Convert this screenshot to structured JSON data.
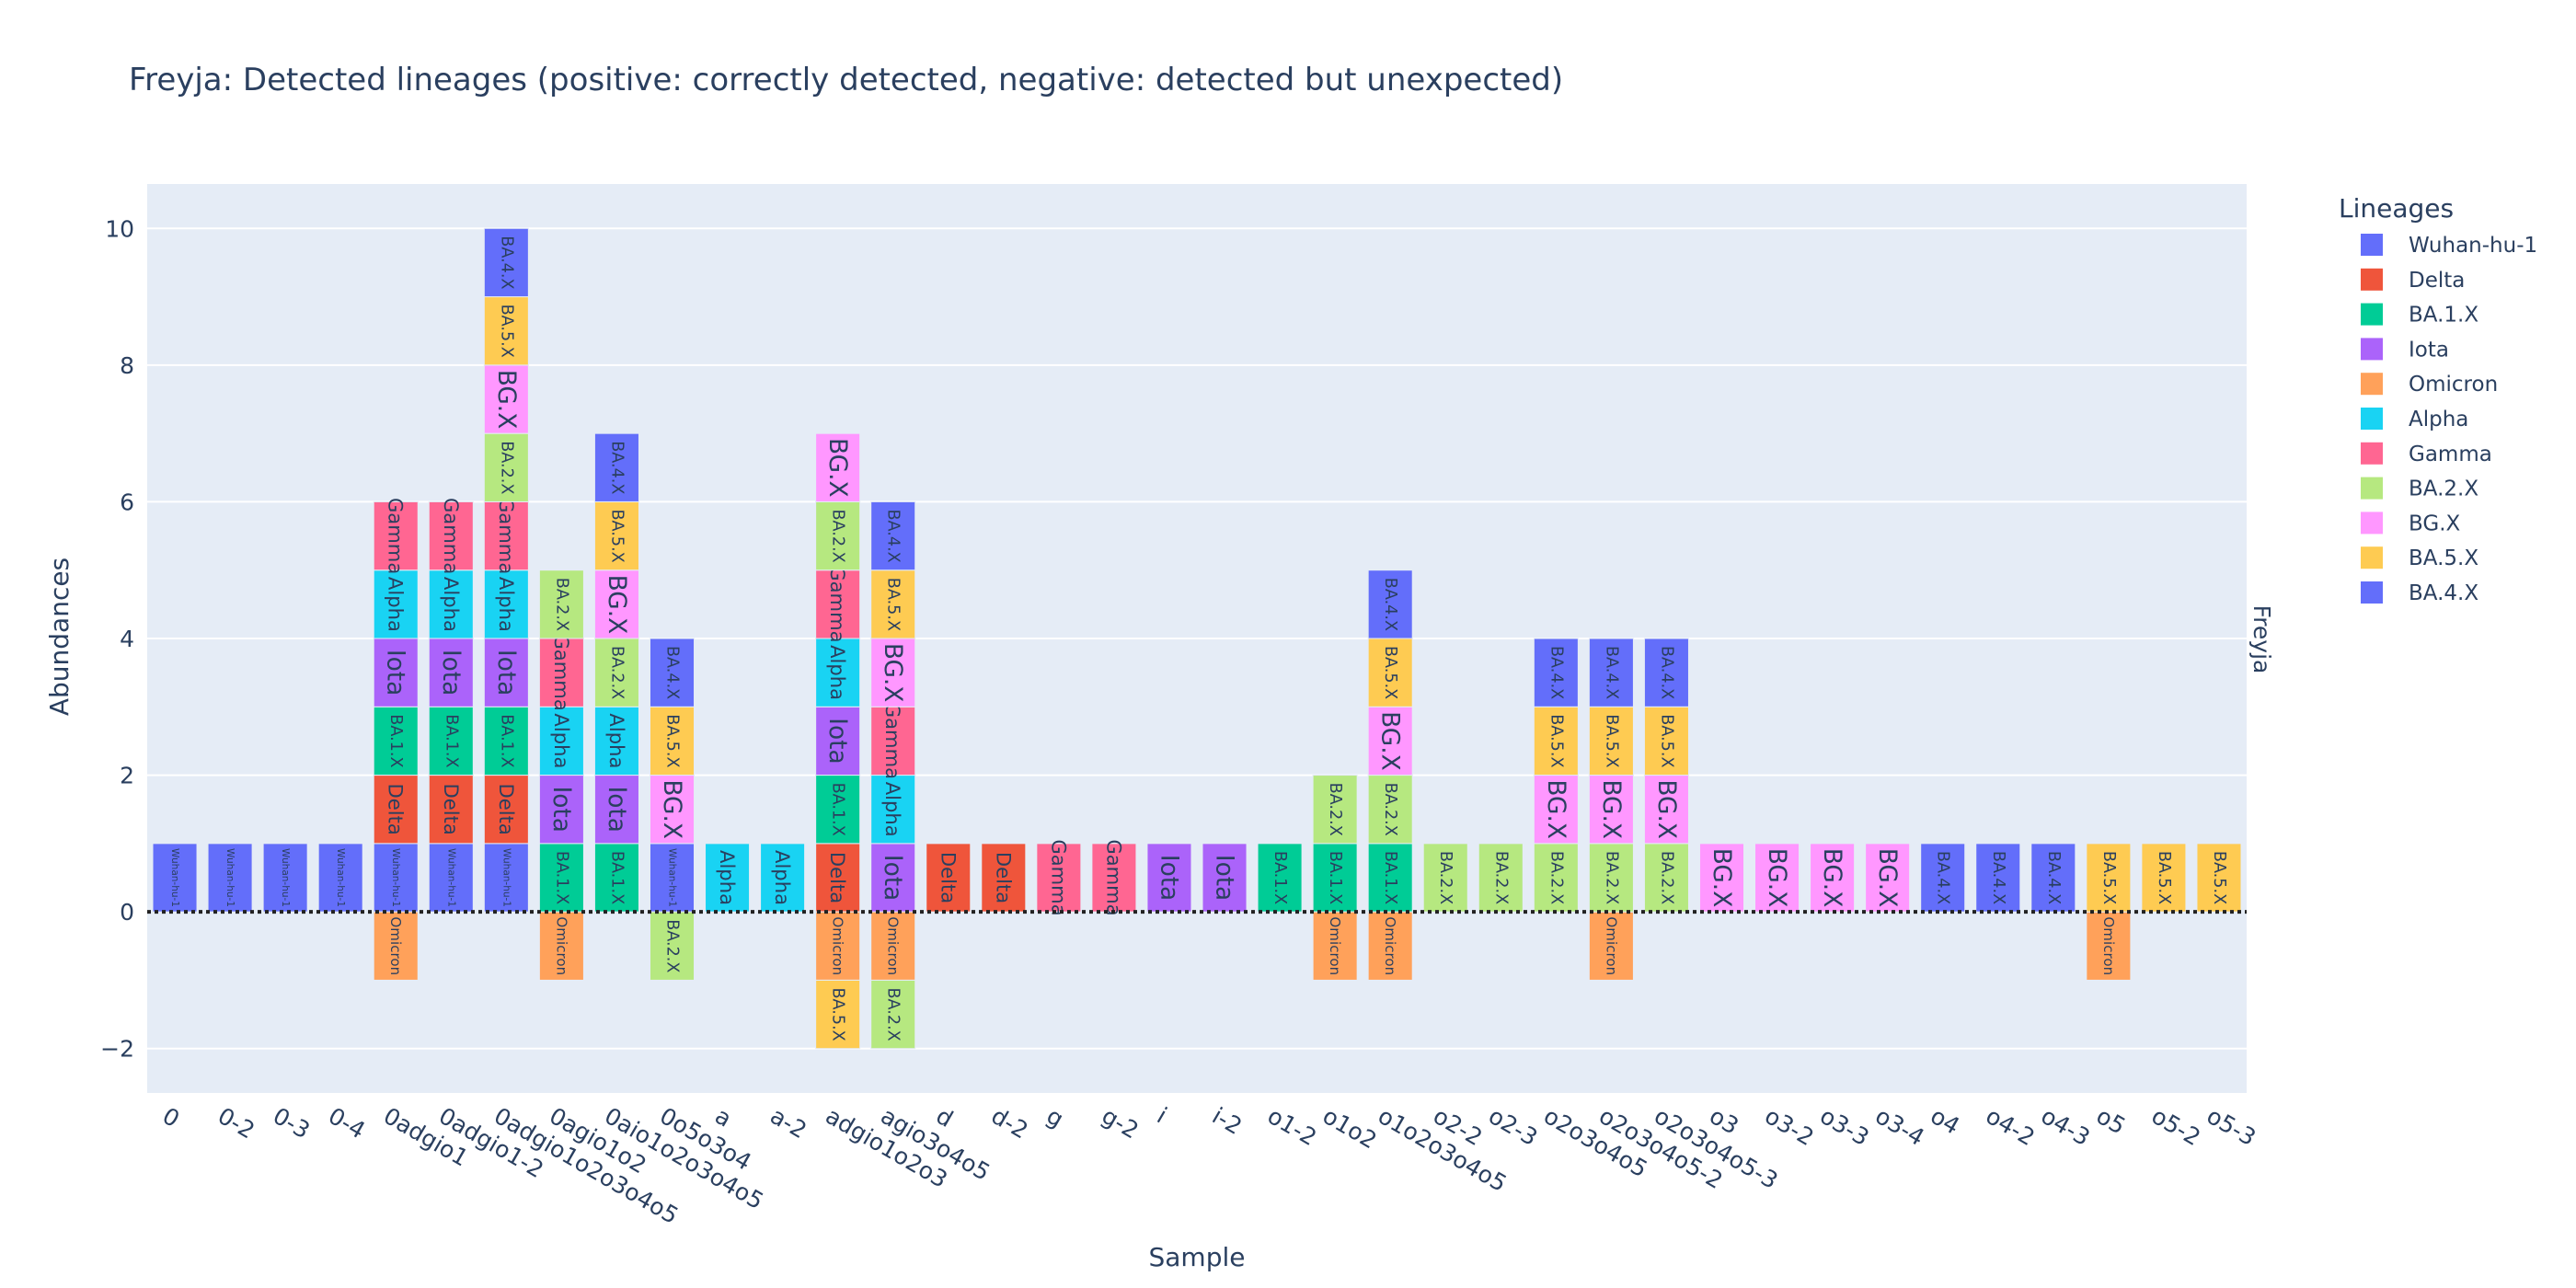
{
  "chart_data": {
    "type": "bar",
    "barmode": "relative",
    "title": "Freyja: Detected lineages (positive: correctly detected, negative: detected but unexpected)",
    "xlabel": "Sample",
    "ylabel": "Abundances",
    "facet_label": "Freyja",
    "legend_title": "Lineages",
    "legend_position": "right",
    "ylim": [
      -2.65,
      10.65
    ],
    "yticks": [
      -2,
      0,
      2,
      4,
      6,
      8,
      10
    ],
    "ytick_labels": [
      "−2",
      "0",
      "2",
      "4",
      "6",
      "8",
      "10"
    ],
    "grid": true,
    "categories": [
      "0",
      "0-2",
      "0-3",
      "0-4",
      "0adgio1",
      "0adgio1-2",
      "0adgio1o2o3o4o5",
      "0agio1o2",
      "0aio1o2o3o4o5",
      "0o5o3o4",
      "a",
      "a-2",
      "adgio1o2o3",
      "agio3o4o5",
      "d",
      "d-2",
      "g",
      "g-2",
      "i",
      "i-2",
      "o1-2",
      "o1o2",
      "o1o2o3o4o5",
      "o2-2",
      "o2-3",
      "o2o3o4o5",
      "o2o3o4o5-2",
      "o2o3o4o5-3",
      "o3",
      "o3-2",
      "o3-3",
      "o3-4",
      "o4",
      "o4-2",
      "o4-3",
      "o5",
      "o5-2",
      "o5-3"
    ],
    "series": [
      {
        "name": "Wuhan-hu-1",
        "color": "#636efa",
        "values": [
          1,
          1,
          1,
          1,
          1,
          1,
          1,
          0,
          0,
          1,
          0,
          0,
          0,
          0,
          0,
          0,
          0,
          0,
          0,
          0,
          0,
          0,
          0,
          0,
          0,
          0,
          0,
          0,
          0,
          0,
          0,
          0,
          0,
          0,
          0,
          0,
          0,
          0
        ]
      },
      {
        "name": "Delta",
        "color": "#ef553b",
        "values": [
          0,
          0,
          0,
          0,
          1,
          1,
          1,
          0,
          0,
          0,
          0,
          0,
          1,
          0,
          1,
          1,
          0,
          0,
          0,
          0,
          0,
          0,
          0,
          0,
          0,
          0,
          0,
          0,
          0,
          0,
          0,
          0,
          0,
          0,
          0,
          0,
          0,
          0
        ]
      },
      {
        "name": "BA.1.X",
        "color": "#00cc96",
        "values": [
          0,
          0,
          0,
          0,
          1,
          1,
          1,
          1,
          1,
          0,
          0,
          0,
          1,
          0,
          0,
          0,
          0,
          0,
          0,
          0,
          1,
          1,
          1,
          0,
          0,
          0,
          0,
          0,
          0,
          0,
          0,
          0,
          0,
          0,
          0,
          0,
          0,
          0
        ]
      },
      {
        "name": "Iota",
        "color": "#ab63fa",
        "values": [
          0,
          0,
          0,
          0,
          1,
          1,
          1,
          1,
          1,
          0,
          0,
          0,
          1,
          1,
          0,
          0,
          0,
          0,
          1,
          1,
          0,
          0,
          0,
          0,
          0,
          0,
          0,
          0,
          0,
          0,
          0,
          0,
          0,
          0,
          0,
          0,
          0,
          0
        ]
      },
      {
        "name": "Omicron",
        "color": "#ffa15a",
        "values": [
          0,
          0,
          0,
          0,
          -1,
          0,
          0,
          -1,
          0,
          0,
          0,
          0,
          -1,
          -1,
          0,
          0,
          0,
          0,
          0,
          0,
          0,
          -1,
          -1,
          0,
          0,
          0,
          -1,
          0,
          0,
          0,
          0,
          0,
          0,
          0,
          0,
          -1,
          0,
          0
        ]
      },
      {
        "name": "Alpha",
        "color": "#19d3f3",
        "values": [
          0,
          0,
          0,
          0,
          1,
          1,
          1,
          1,
          1,
          0,
          1,
          1,
          1,
          1,
          0,
          0,
          0,
          0,
          0,
          0,
          0,
          0,
          0,
          0,
          0,
          0,
          0,
          0,
          0,
          0,
          0,
          0,
          0,
          0,
          0,
          0,
          0,
          0
        ]
      },
      {
        "name": "Gamma",
        "color": "#ff6692",
        "values": [
          0,
          0,
          0,
          0,
          1,
          1,
          1,
          1,
          0,
          0,
          0,
          0,
          1,
          1,
          0,
          0,
          1,
          1,
          0,
          0,
          0,
          0,
          0,
          0,
          0,
          0,
          0,
          0,
          0,
          0,
          0,
          0,
          0,
          0,
          0,
          0,
          0,
          0
        ]
      },
      {
        "name": "BA.2.X",
        "color": "#b6e880",
        "values": [
          0,
          0,
          0,
          0,
          0,
          0,
          1,
          1,
          1,
          -1,
          0,
          0,
          1,
          -1,
          0,
          0,
          0,
          0,
          0,
          0,
          0,
          1,
          1,
          1,
          1,
          1,
          1,
          1,
          0,
          0,
          0,
          0,
          0,
          0,
          0,
          0,
          0,
          0
        ]
      },
      {
        "name": "BG.X",
        "color": "#ff97ff",
        "values": [
          0,
          0,
          0,
          0,
          0,
          0,
          1,
          0,
          1,
          1,
          0,
          0,
          1,
          1,
          0,
          0,
          0,
          0,
          0,
          0,
          0,
          0,
          1,
          0,
          0,
          1,
          1,
          1,
          1,
          1,
          1,
          1,
          0,
          0,
          0,
          0,
          0,
          0
        ]
      },
      {
        "name": "BA.5.X",
        "color": "#fecb52",
        "values": [
          0,
          0,
          0,
          0,
          0,
          0,
          1,
          0,
          1,
          1,
          0,
          0,
          -1,
          1,
          0,
          0,
          0,
          0,
          0,
          0,
          0,
          0,
          1,
          0,
          0,
          1,
          1,
          1,
          0,
          0,
          0,
          0,
          0,
          0,
          0,
          1,
          1,
          1
        ]
      },
      {
        "name": "BA.4.X",
        "color": "#636efa",
        "values": [
          0,
          0,
          0,
          0,
          0,
          0,
          1,
          0,
          1,
          1,
          0,
          0,
          0,
          1,
          0,
          0,
          0,
          0,
          0,
          0,
          0,
          0,
          1,
          0,
          0,
          1,
          1,
          1,
          0,
          0,
          0,
          0,
          1,
          1,
          1,
          0,
          0,
          0
        ]
      }
    ]
  }
}
